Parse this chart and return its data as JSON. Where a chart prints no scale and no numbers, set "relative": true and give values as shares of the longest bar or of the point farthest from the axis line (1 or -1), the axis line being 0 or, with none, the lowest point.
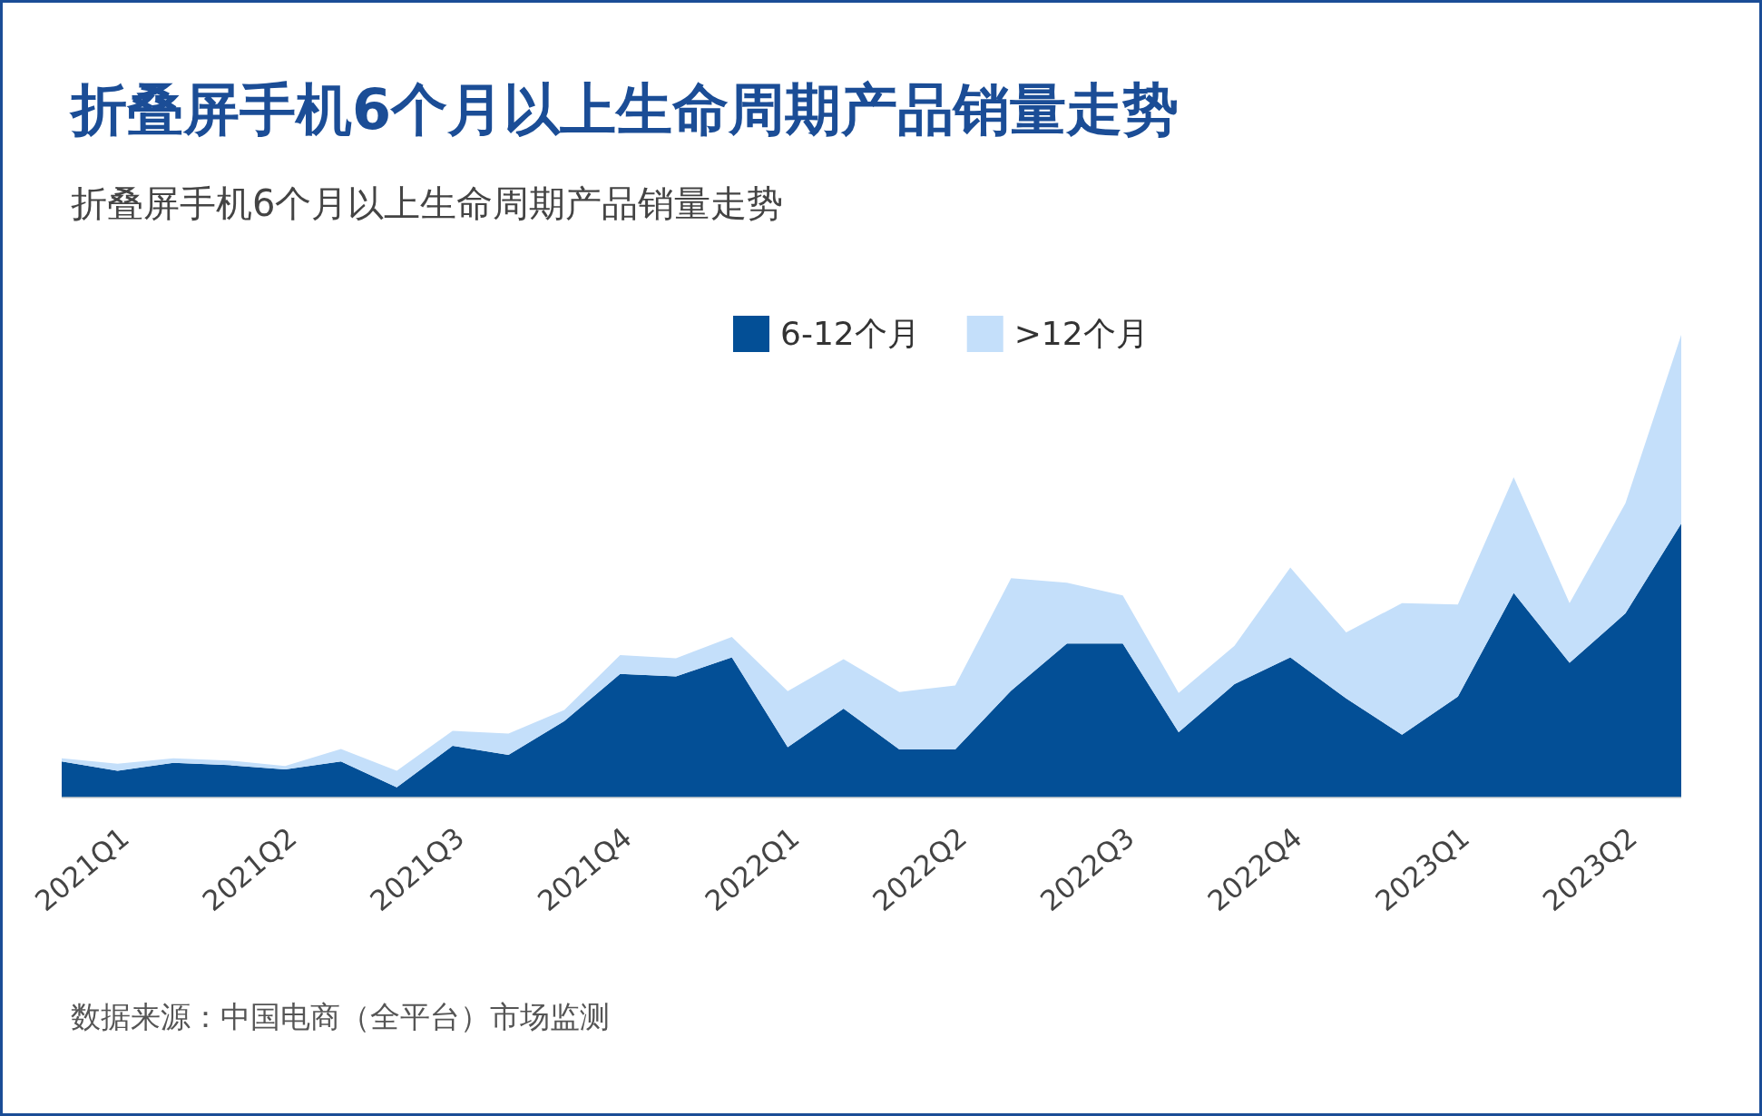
{
  "chart_data": {
    "type": "area",
    "title": "折叠屏手机6个月以上生命周期产品销量走势",
    "subtitle": "折叠屏手机6个月以上生命周期产品销量走势",
    "relative": true,
    "stacked": true,
    "legend": "top",
    "categories": [
      null,
      "2021Q1",
      null,
      null,
      "2021Q2",
      null,
      null,
      "2021Q3",
      null,
      null,
      "2021Q4",
      null,
      null,
      "2022Q1",
      null,
      null,
      "2022Q2",
      null,
      null,
      "2022Q3",
      null,
      null,
      "2022Q4",
      null,
      null,
      "2023Q1",
      null,
      null,
      "2023Q2",
      null
    ],
    "series": [
      {
        "name": "6-12个月",
        "color": "#034f96",
        "values": [
          0.078,
          0.058,
          0.075,
          0.07,
          0.061,
          0.078,
          0.022,
          0.112,
          0.092,
          0.165,
          0.267,
          0.262,
          0.303,
          0.109,
          0.192,
          0.104,
          0.104,
          0.231,
          0.333,
          0.333,
          0.141,
          0.245,
          0.303,
          0.214,
          0.136,
          0.218,
          0.442,
          0.291,
          0.398,
          0.592
        ]
      },
      {
        "name": ">12个月",
        "color": "#c4dffa",
        "values": [
          0.007,
          0.015,
          0.01,
          0.01,
          0.007,
          0.027,
          0.036,
          0.032,
          0.046,
          0.024,
          0.041,
          0.039,
          0.044,
          0.121,
          0.107,
          0.124,
          0.138,
          0.243,
          0.131,
          0.104,
          0.085,
          0.083,
          0.194,
          0.143,
          0.284,
          0.199,
          0.25,
          0.129,
          0.238,
          0.408
        ]
      }
    ],
    "annotations": [
      "数据来源：中国电商（全平台）市场监测"
    ]
  }
}
